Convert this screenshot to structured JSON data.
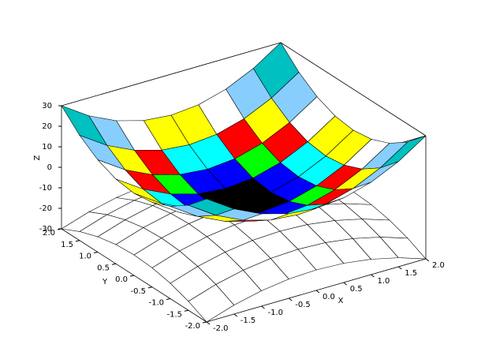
{
  "chart_data": {
    "type": "surface",
    "x": [
      -2,
      -1.5,
      -1,
      -0.5,
      0,
      0.5,
      1,
      1.5,
      2
    ],
    "y": [
      -2,
      -1.5,
      -1,
      -0.5,
      0,
      0.5,
      1,
      1.5,
      2
    ],
    "surfaces": [
      {
        "color": "#ffffff",
        "z": [
          [
            -30,
            -25.625,
            -22.5,
            -20.625,
            -20,
            -20.625,
            -22.5,
            -25.625,
            -30
          ],
          [
            -25.625,
            -21.25,
            -18.125,
            -16.25,
            -15.625,
            -16.25,
            -18.125,
            -21.25,
            -25.625
          ],
          [
            -22.5,
            -18.125,
            -15,
            -13.125,
            -12.5,
            -13.125,
            -15,
            -18.125,
            -22.5
          ],
          [
            -20.625,
            -16.25,
            -13.125,
            -11.25,
            -10.625,
            -11.25,
            -13.125,
            -16.25,
            -20.625
          ],
          [
            -20,
            -15.625,
            -12.5,
            -10.625,
            -10,
            -10.625,
            -12.5,
            -15.625,
            -20
          ],
          [
            -20.625,
            -16.25,
            -13.125,
            -11.25,
            -10.625,
            -11.25,
            -13.125,
            -16.25,
            -20.625
          ],
          [
            -22.5,
            -18.125,
            -15,
            -13.125,
            -12.5,
            -13.125,
            -15,
            -18.125,
            -22.5
          ],
          [
            -25.625,
            -21.25,
            -18.125,
            -16.25,
            -15.625,
            -16.25,
            -18.125,
            -21.25,
            -25.625
          ],
          [
            -30,
            -25.625,
            -22.5,
            -20.625,
            -20,
            -20.625,
            -22.5,
            -25.625,
            -30
          ]
        ]
      },
      {
        "colormap": [
          "#000000",
          "#0000ff",
          "#00ff00",
          "#00ffff",
          "#ff0000",
          "#ff00ff",
          "#ffff00",
          "#ffffff",
          "#87ceff",
          "#0000b0",
          "#00b000",
          "#00c0c0",
          "#c00000",
          "#a52a2a",
          "#ff8080"
        ],
        "z": [
          [
            30,
            21.25,
            15,
            11.25,
            10,
            11.25,
            15,
            21.25,
            30
          ],
          [
            21.25,
            12.5,
            6.25,
            2.5,
            1.25,
            2.5,
            6.25,
            12.5,
            21.25
          ],
          [
            15,
            6.25,
            0,
            -3.75,
            -5,
            -3.75,
            0,
            6.25,
            15
          ],
          [
            11.25,
            2.5,
            -3.75,
            -7.5,
            -8.75,
            -7.5,
            -3.75,
            2.5,
            11.25
          ],
          [
            10,
            1.25,
            -5,
            -8.75,
            -10,
            -8.75,
            -5,
            1.25,
            10
          ],
          [
            11.25,
            2.5,
            -3.75,
            -7.5,
            -8.75,
            -7.5,
            -3.75,
            2.5,
            11.25
          ],
          [
            15,
            6.25,
            0,
            -3.75,
            -5,
            -3.75,
            0,
            6.25,
            15
          ],
          [
            21.25,
            12.5,
            6.25,
            2.5,
            1.25,
            2.5,
            6.25,
            12.5,
            21.25
          ],
          [
            30,
            21.25,
            15,
            11.25,
            10,
            11.25,
            15,
            21.25,
            30
          ]
        ]
      }
    ],
    "xlim": [
      -2,
      2
    ],
    "ylim": [
      -2,
      2
    ],
    "zlim": [
      -30,
      30
    ],
    "xticks": [
      {
        "value": -2,
        "label": "-2.0"
      },
      {
        "value": -1.5,
        "label": "-1.5"
      },
      {
        "value": -1,
        "label": "-1.0"
      },
      {
        "value": -0.5,
        "label": "-0.5"
      },
      {
        "value": 0,
        "label": "0.0"
      },
      {
        "value": 0.5,
        "label": "0.5"
      },
      {
        "value": 1,
        "label": "1.0"
      },
      {
        "value": 1.5,
        "label": "1.5"
      },
      {
        "value": 2,
        "label": "2.0"
      }
    ],
    "yticks": [
      {
        "value": -2,
        "label": "-2.0"
      },
      {
        "value": -1.5,
        "label": "-1.5"
      },
      {
        "value": -1,
        "label": "-1.0"
      },
      {
        "value": -0.5,
        "label": "-0.5"
      },
      {
        "value": 0,
        "label": "0.0"
      },
      {
        "value": 0.5,
        "label": "0.5"
      },
      {
        "value": 1,
        "label": "1.0"
      },
      {
        "value": 1.5,
        "label": "1.5"
      },
      {
        "value": 2,
        "label": "2.0"
      }
    ],
    "zticks": [
      -30,
      -20,
      -10,
      0,
      10,
      20,
      30
    ],
    "xlabel": "X",
    "ylabel": "Y",
    "zlabel": "Z"
  }
}
